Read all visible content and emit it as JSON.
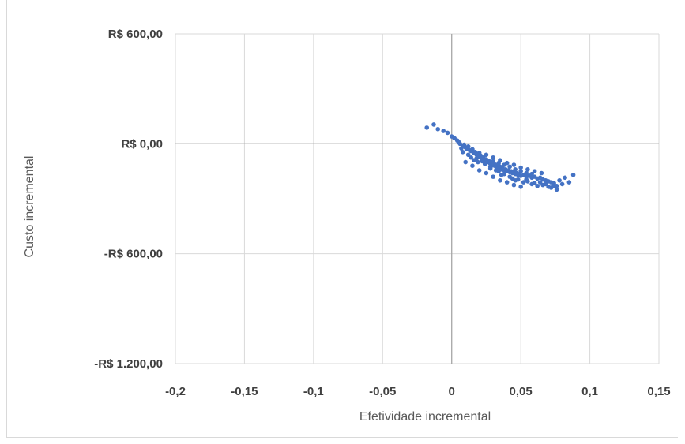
{
  "chart_data": {
    "type": "scatter",
    "title": "",
    "xlabel": "Efetividade incremental",
    "ylabel": "Custo incremental",
    "xlim": [
      -0.2,
      0.15
    ],
    "ylim": [
      -1200,
      600
    ],
    "x_ticks": [
      -0.2,
      -0.15,
      -0.1,
      -0.05,
      0,
      0.05,
      0.1,
      0.15
    ],
    "x_tick_labels": [
      "-0,2",
      "-0,15",
      "-0,1",
      "-0,05",
      "0",
      "0,05",
      "0,1",
      "0,15"
    ],
    "y_ticks": [
      600,
      0,
      -600,
      -1200
    ],
    "y_tick_labels": [
      "R$ 600,00",
      "R$ 0,00",
      "-R$ 600,00",
      "-R$ 1.200,00"
    ],
    "grid": true,
    "legend": "none",
    "marker_color": "#4472c4",
    "series": [
      {
        "values": [
          [
            -0.018,
            88
          ],
          [
            -0.013,
            105
          ],
          [
            -0.01,
            80
          ],
          [
            -0.006,
            70
          ],
          [
            -0.003,
            60
          ],
          [
            0.0,
            40
          ],
          [
            0.002,
            30
          ],
          [
            0.004,
            18
          ],
          [
            0.005,
            10
          ],
          [
            0.006,
            0
          ],
          [
            0.008,
            -10
          ],
          [
            0.009,
            -5
          ],
          [
            0.01,
            -20
          ],
          [
            0.011,
            -28
          ],
          [
            0.012,
            -15
          ],
          [
            0.013,
            -35
          ],
          [
            0.014,
            -40
          ],
          [
            0.015,
            -30
          ],
          [
            0.016,
            -50
          ],
          [
            0.017,
            -45
          ],
          [
            0.018,
            -60
          ],
          [
            0.019,
            -55
          ],
          [
            0.02,
            -70
          ],
          [
            0.021,
            -65
          ],
          [
            0.022,
            -80
          ],
          [
            0.023,
            -75
          ],
          [
            0.024,
            -90
          ],
          [
            0.025,
            -85
          ],
          [
            0.026,
            -100
          ],
          [
            0.027,
            -95
          ],
          [
            0.028,
            -110
          ],
          [
            0.029,
            -105
          ],
          [
            0.03,
            -118
          ],
          [
            0.031,
            -112
          ],
          [
            0.032,
            -125
          ],
          [
            0.033,
            -120
          ],
          [
            0.034,
            -130
          ],
          [
            0.035,
            -125
          ],
          [
            0.036,
            -140
          ],
          [
            0.037,
            -135
          ],
          [
            0.038,
            -145
          ],
          [
            0.039,
            -140
          ],
          [
            0.04,
            -150
          ],
          [
            0.041,
            -145
          ],
          [
            0.042,
            -155
          ],
          [
            0.043,
            -150
          ],
          [
            0.044,
            -160
          ],
          [
            0.045,
            -155
          ],
          [
            0.046,
            -165
          ],
          [
            0.047,
            -160
          ],
          [
            0.048,
            -170
          ],
          [
            0.049,
            -165
          ],
          [
            0.05,
            -175
          ],
          [
            0.052,
            -170
          ],
          [
            0.054,
            -180
          ],
          [
            0.056,
            -175
          ],
          [
            0.058,
            -185
          ],
          [
            0.06,
            -180
          ],
          [
            0.062,
            -190
          ],
          [
            0.064,
            -185
          ],
          [
            0.066,
            -195
          ],
          [
            0.068,
            -200
          ],
          [
            0.07,
            -205
          ],
          [
            0.072,
            -210
          ],
          [
            0.074,
            -215
          ],
          [
            0.076,
            -230
          ],
          [
            0.078,
            -200
          ],
          [
            0.08,
            -220
          ],
          [
            0.082,
            -185
          ],
          [
            0.085,
            -210
          ],
          [
            0.088,
            -170
          ],
          [
            0.076,
            -250
          ],
          [
            0.072,
            -240
          ],
          [
            0.066,
            -225
          ],
          [
            0.06,
            -215
          ],
          [
            0.055,
            -205
          ],
          [
            0.05,
            -235
          ],
          [
            0.045,
            -225
          ],
          [
            0.04,
            -210
          ],
          [
            0.035,
            -200
          ],
          [
            0.03,
            -180
          ],
          [
            0.025,
            -160
          ],
          [
            0.02,
            -145
          ],
          [
            0.015,
            -120
          ],
          [
            0.01,
            -100
          ],
          [
            0.012,
            -60
          ],
          [
            0.018,
            -80
          ],
          [
            0.022,
            -95
          ],
          [
            0.028,
            -125
          ],
          [
            0.032,
            -145
          ],
          [
            0.038,
            -165
          ],
          [
            0.042,
            -180
          ],
          [
            0.048,
            -195
          ],
          [
            0.052,
            -210
          ],
          [
            0.058,
            -220
          ],
          [
            0.062,
            -230
          ],
          [
            0.068,
            -220
          ],
          [
            0.07,
            -235
          ],
          [
            0.074,
            -230
          ],
          [
            0.064,
            -210
          ],
          [
            0.02,
            -50
          ],
          [
            0.025,
            -60
          ],
          [
            0.03,
            -75
          ],
          [
            0.035,
            -90
          ],
          [
            0.04,
            -105
          ],
          [
            0.045,
            -115
          ],
          [
            0.05,
            -130
          ],
          [
            0.055,
            -140
          ],
          [
            0.06,
            -150
          ],
          [
            0.065,
            -160
          ],
          [
            0.024,
            -110
          ],
          [
            0.028,
            -135
          ],
          [
            0.034,
            -150
          ],
          [
            0.036,
            -170
          ],
          [
            0.044,
            -190
          ],
          [
            0.046,
            -200
          ],
          [
            0.054,
            -195
          ],
          [
            0.058,
            -165
          ],
          [
            0.03,
            -95
          ],
          [
            0.034,
            -105
          ],
          [
            0.038,
            -115
          ],
          [
            0.042,
            -125
          ],
          [
            0.046,
            -140
          ],
          [
            0.05,
            -150
          ],
          [
            0.054,
            -160
          ],
          [
            0.016,
            -90
          ],
          [
            0.014,
            -75
          ],
          [
            0.008,
            -45
          ],
          [
            0.007,
            -25
          ],
          [
            0.019,
            -100
          ]
        ]
      }
    ]
  }
}
